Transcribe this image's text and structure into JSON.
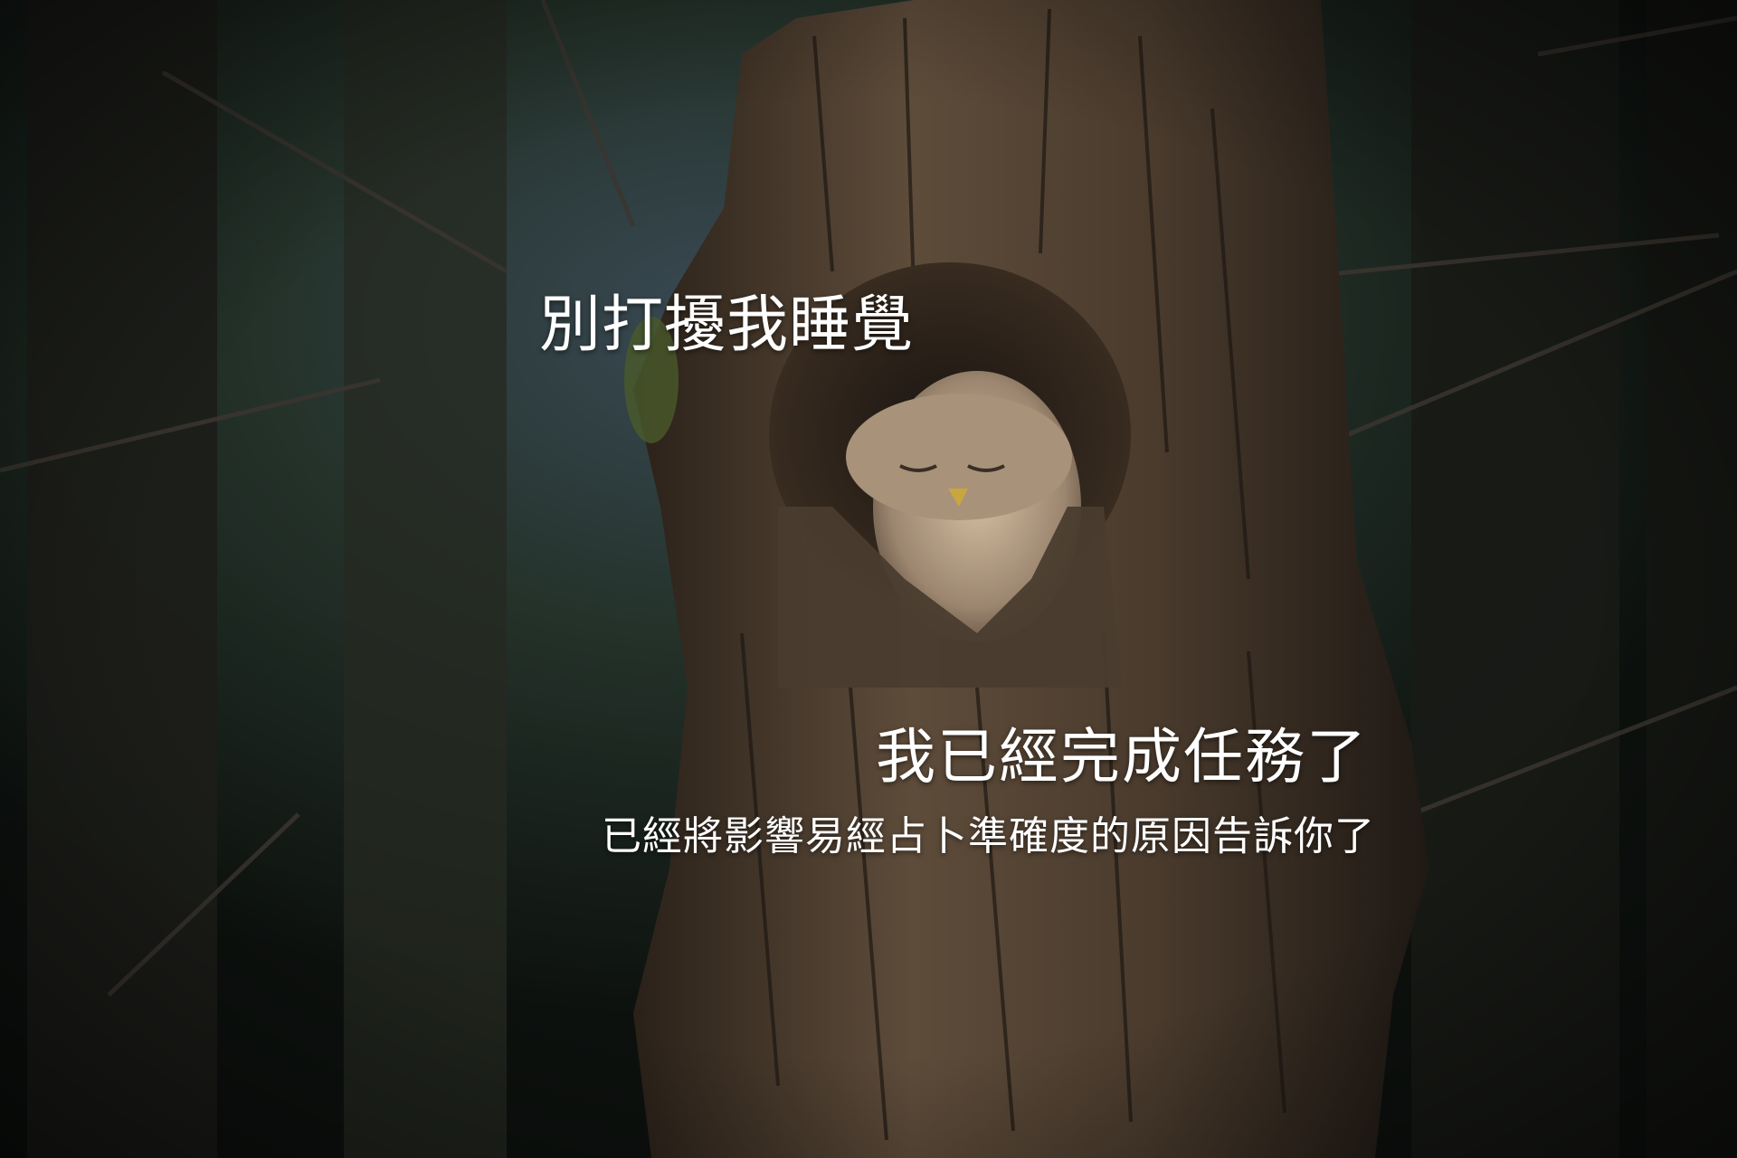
{
  "scene": {
    "description_icon": "owl-in-tree-hollow-icon",
    "colors": {
      "background_dark": "#0f1210",
      "forest_green": "#22301f",
      "bark_light": "#6e5a45",
      "bark_dark": "#2b2119",
      "owl_feather": "#b9a38a",
      "caption_text": "#ffffff"
    }
  },
  "captions": {
    "top": "別打擾我睡覺",
    "main": "我已經完成任務了",
    "sub": "已經將影響易經占卜準確度的原因告訴你了"
  }
}
